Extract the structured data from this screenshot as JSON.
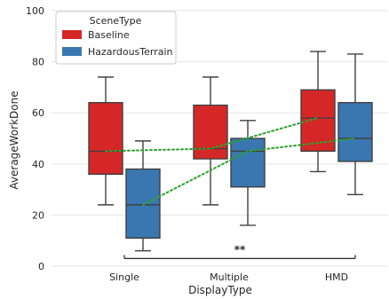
{
  "chart_data": {
    "type": "box",
    "title": "",
    "xlabel": "DisplayType",
    "ylabel": "AverageWorkDone",
    "categories": [
      "Single",
      "Multiple",
      "HMD"
    ],
    "ylim": [
      0,
      100
    ],
    "yticks": [
      0,
      20,
      40,
      60,
      80,
      100
    ],
    "grid": true,
    "legend": {
      "title": "SceneType",
      "placement": "top-left",
      "entries": [
        "Baseline",
        "HazardousTerrain"
      ]
    },
    "series": [
      {
        "name": "Baseline",
        "color": "#d62728",
        "boxes": [
          {
            "category": "Single",
            "whisker_low": 24,
            "q1": 36,
            "median": 45,
            "q3": 64,
            "whisker_high": 74
          },
          {
            "category": "Multiple",
            "whisker_low": 24,
            "q1": 42,
            "median": 46,
            "q3": 63,
            "whisker_high": 74
          },
          {
            "category": "HMD",
            "whisker_low": 37,
            "q1": 45,
            "median": 58,
            "q3": 69,
            "whisker_high": 84
          }
        ],
        "mean_line_color": "#2ca02c",
        "mean_line_style": "dotted"
      },
      {
        "name": "HazardousTerrain",
        "color": "#3a77b0",
        "boxes": [
          {
            "category": "Single",
            "whisker_low": 6,
            "q1": 11,
            "median": 24,
            "q3": 38,
            "whisker_high": 49
          },
          {
            "category": "Multiple",
            "whisker_low": 16,
            "q1": 31,
            "median": 45,
            "q3": 50,
            "whisker_high": 57
          },
          {
            "category": "HMD",
            "whisker_low": 28,
            "q1": 41,
            "median": 50,
            "q3": 64,
            "whisker_high": 83
          }
        ],
        "mean_line_color": "#2ca02c",
        "mean_line_style": "dotted"
      }
    ],
    "annotations": [
      {
        "type": "significance_bracket",
        "from": "Single",
        "to": "HMD",
        "text": "**",
        "y": 3
      }
    ]
  }
}
